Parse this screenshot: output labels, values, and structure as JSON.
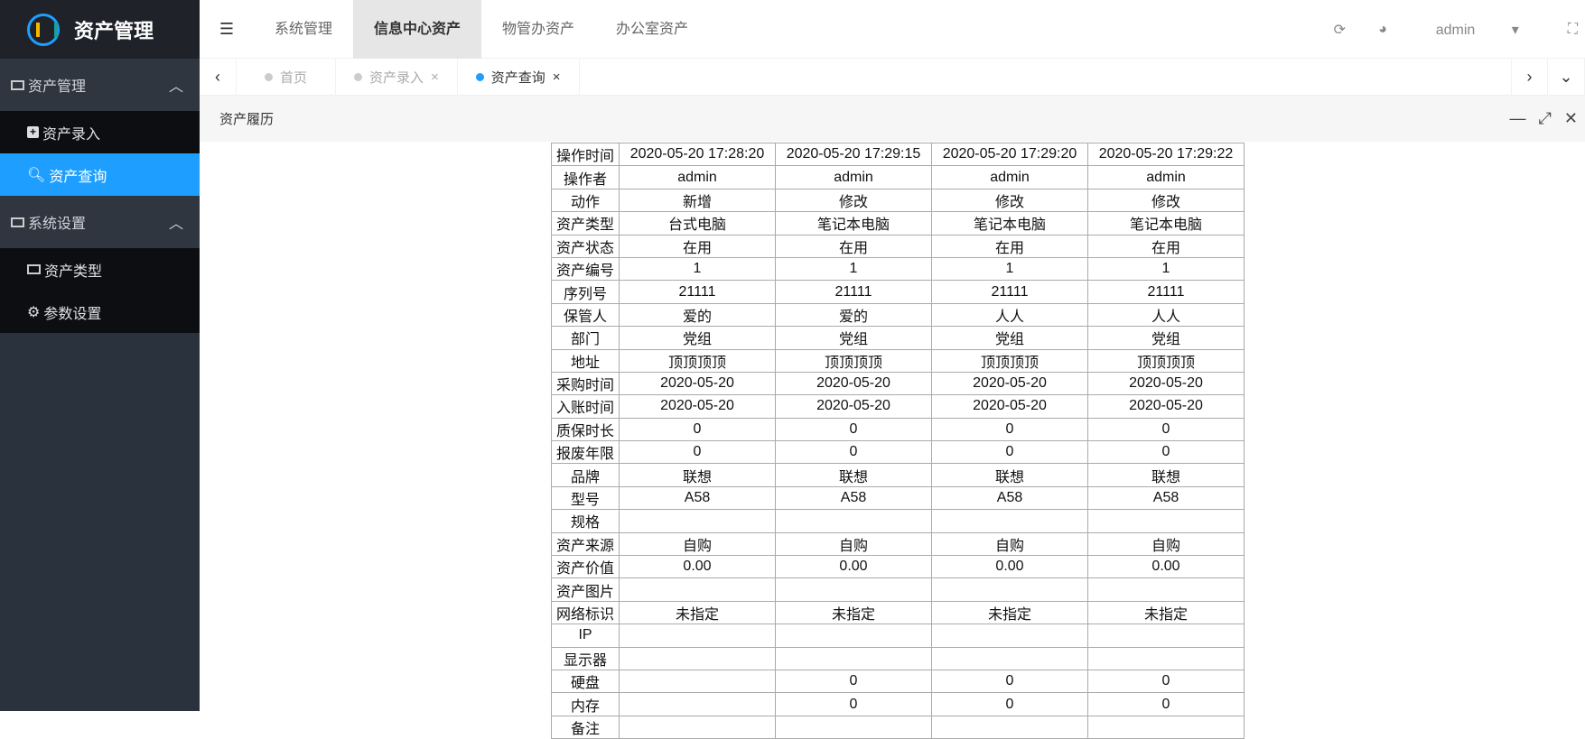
{
  "app": {
    "title": "资产管理"
  },
  "sidebar": {
    "groups": [
      {
        "label": "资产管理",
        "items": [
          {
            "label": "资产录入",
            "icon": "plus-square-icon"
          },
          {
            "label": "资产查询",
            "icon": "search-icon",
            "active": true
          }
        ]
      },
      {
        "label": "系统设置",
        "items": [
          {
            "label": "资产类型",
            "icon": "card-icon"
          },
          {
            "label": "参数设置",
            "icon": "gear-icon"
          }
        ]
      }
    ]
  },
  "topnav": {
    "items": [
      "系统管理",
      "信息中心资产",
      "物管办资产",
      "办公室资产"
    ],
    "active": "信息中心资产",
    "user": "admin"
  },
  "tabs": [
    {
      "label": "首页"
    },
    {
      "label": "资产录入",
      "close": "×"
    },
    {
      "label": "资产查询",
      "close": "×",
      "active": true
    }
  ],
  "panel": {
    "title": "资产履历"
  },
  "colors": {
    "accent": "#1e9fff",
    "sidebar": "#2a323d"
  },
  "table": {
    "rows": [
      [
        "操作时间",
        "2020-05-20 17:28:20",
        "2020-05-20 17:29:15",
        "2020-05-20 17:29:20",
        "2020-05-20 17:29:22"
      ],
      [
        "操作者",
        "admin",
        "admin",
        "admin",
        "admin"
      ],
      [
        "动作",
        "新增",
        "修改",
        "修改",
        "修改"
      ],
      [
        "资产类型",
        "台式电脑",
        "笔记本电脑",
        "笔记本电脑",
        "笔记本电脑"
      ],
      [
        "资产状态",
        "在用",
        "在用",
        "在用",
        "在用"
      ],
      [
        "资产编号",
        "1",
        "1",
        "1",
        "1"
      ],
      [
        "序列号",
        "21111",
        "21111",
        "21111",
        "21111"
      ],
      [
        "保管人",
        "爱的",
        "爱的",
        "人人",
        "人人"
      ],
      [
        "部门",
        "党组",
        "党组",
        "党组",
        "党组"
      ],
      [
        "地址",
        "顶顶顶顶",
        "顶顶顶顶",
        "顶顶顶顶",
        "顶顶顶顶"
      ],
      [
        "采购时间",
        "2020-05-20",
        "2020-05-20",
        "2020-05-20",
        "2020-05-20"
      ],
      [
        "入账时间",
        "2020-05-20",
        "2020-05-20",
        "2020-05-20",
        "2020-05-20"
      ],
      [
        "质保时长",
        "0",
        "0",
        "0",
        "0"
      ],
      [
        "报废年限",
        "0",
        "0",
        "0",
        "0"
      ],
      [
        "品牌",
        "联想",
        "联想",
        "联想",
        "联想"
      ],
      [
        "型号",
        "A58",
        "A58",
        "A58",
        "A58"
      ],
      [
        "规格",
        "",
        "",
        "",
        ""
      ],
      [
        "资产来源",
        "自购",
        "自购",
        "自购",
        "自购"
      ],
      [
        "资产价值",
        "0.00",
        "0.00",
        "0.00",
        "0.00"
      ],
      [
        "资产图片",
        "",
        "",
        "",
        ""
      ],
      [
        "网络标识",
        "未指定",
        "未指定",
        "未指定",
        "未指定"
      ],
      [
        "IP",
        "",
        "",
        "",
        ""
      ],
      [
        "显示器",
        "",
        "",
        "",
        ""
      ],
      [
        "硬盘",
        "",
        "0",
        "0",
        "0"
      ],
      [
        "内存",
        "",
        "0",
        "0",
        "0"
      ],
      [
        "备注",
        "",
        "",
        "",
        ""
      ]
    ]
  }
}
